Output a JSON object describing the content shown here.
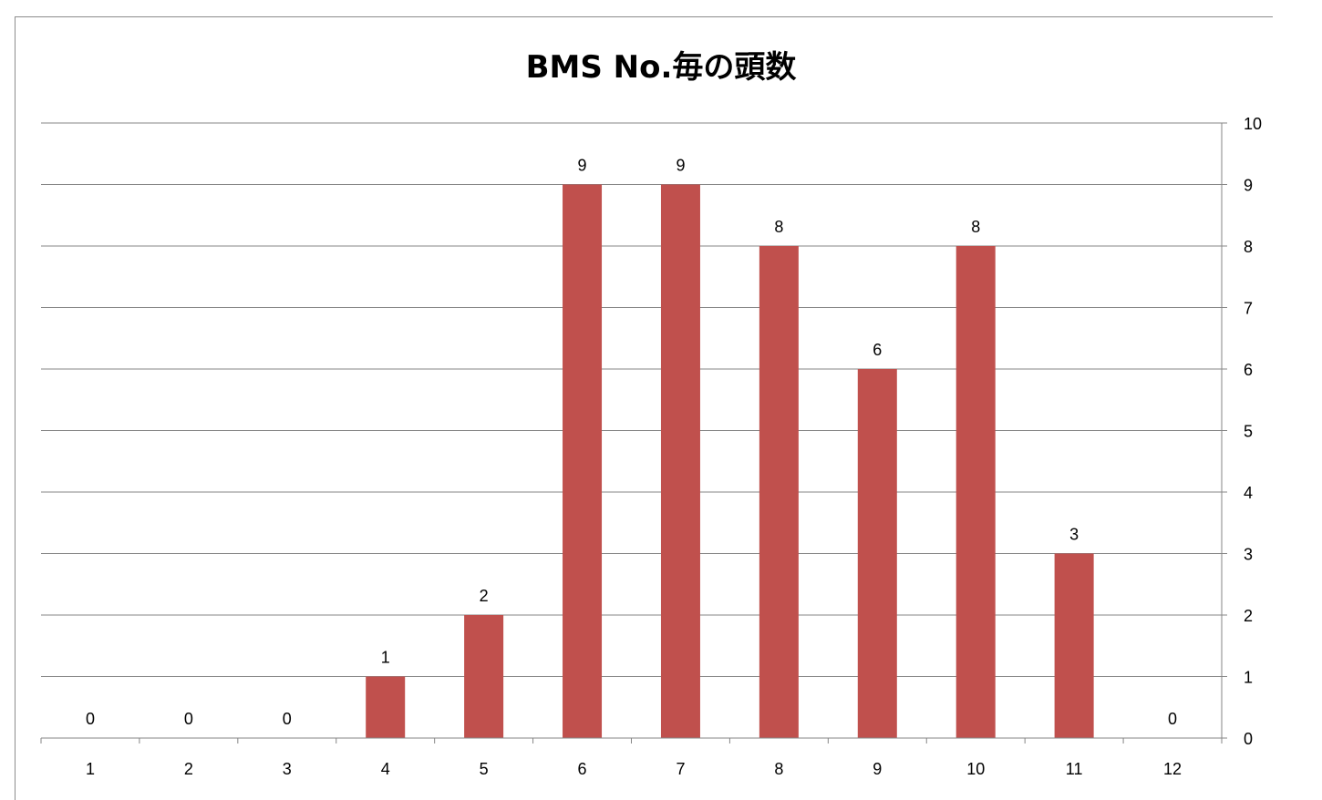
{
  "chart_data": {
    "type": "bar",
    "title": "BMS No.毎の頭数",
    "xlabel": "",
    "ylabel": "",
    "categories": [
      "1",
      "2",
      "3",
      "4",
      "5",
      "6",
      "7",
      "8",
      "9",
      "10",
      "11",
      "12"
    ],
    "values": [
      0,
      0,
      0,
      1,
      2,
      9,
      9,
      8,
      6,
      8,
      3,
      0
    ],
    "data_labels": [
      "0",
      "0",
      "0",
      "1",
      "2",
      "9",
      "9",
      "8",
      "6",
      "8",
      "3",
      "0"
    ],
    "ylim": [
      0,
      10
    ],
    "y_ticks": [
      "0",
      "1",
      "2",
      "3",
      "4",
      "5",
      "6",
      "7",
      "8",
      "9",
      "10"
    ],
    "y_axis_position": "right",
    "grid": true,
    "legend": "none",
    "bar_color": "#C0504D",
    "gridline_color": "#868686"
  }
}
